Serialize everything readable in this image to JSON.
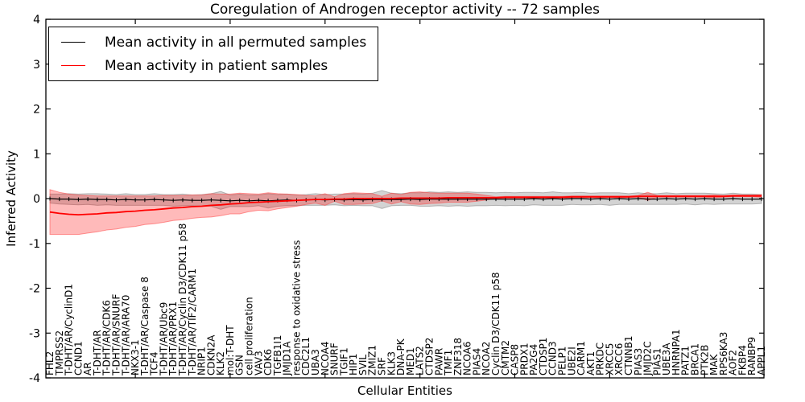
{
  "title": "Coregulation of Androgen receptor activity -- 72 samples",
  "axes": {
    "ylabel": "Inferred Activity",
    "xlabel": "Cellular Entities",
    "yticks": [
      4,
      3,
      2,
      1,
      0,
      -1,
      -2,
      -3,
      -4
    ],
    "ylim": [
      -4,
      4
    ]
  },
  "legend": {
    "entries": [
      {
        "label": "Mean activity in all permuted samples",
        "color": "#000000"
      },
      {
        "label": "Mean activity in patient samples",
        "color": "#ff0000"
      }
    ],
    "position": "upper left"
  },
  "chart_data": {
    "type": "line",
    "title": "Coregulation of Androgen receptor activity -- 72 samples",
    "xlabel": "Cellular Entities",
    "ylabel": "Inferred Activity",
    "ylim": [
      -4,
      4
    ],
    "grid": false,
    "legend_position": "upper left",
    "xtick_indices": [
      9,
      19,
      29,
      39,
      49,
      59,
      69
    ],
    "categories": [
      "FHL2",
      "TMPRSS2",
      "T-DHT/AR/CyclinD1",
      "CCND1",
      "AR",
      "T-DHT/AR",
      "T-DHT/AR/CDK6",
      "T-DHT/AR/SNURF",
      "T-DHT/AR/ARA70",
      "NKX3-1",
      "T-DHT/AR/Caspase 8",
      "TCF4",
      "T-DHT/AR/Ubc9",
      "T-DHT/AR/PRX1",
      "T-DHT/AR/Cyclin D3/CDK11 p58",
      "T-DHT/AR/TIF2/CARM1",
      "NRIP1",
      "CDKN2A",
      "KLK2",
      "mol:T-DHT",
      "GSN",
      "cell proliferation",
      "VAV3",
      "CDK6",
      "TGFB1I1",
      "JMJD1A",
      "response to oxidative stress",
      "CDC2L1",
      "UBA3",
      "NCOA4",
      "SNURF",
      "TGIF1",
      "HIP1",
      "SVIL",
      "ZMIZ1",
      "SRF",
      "KLK3",
      "DNA-PK",
      "MED1",
      "LATS2",
      "CTDSP2",
      "PAWR",
      "TMF1",
      "ZNF318",
      "NCOA6",
      "PIAS4",
      "NCOA2",
      "Cyclin D3/CDK11 p58",
      "CMTM2",
      "CASP8",
      "PRDX1",
      "PA2G4",
      "CTDSP1",
      "CCND3",
      "PELP1",
      "UBE2I",
      "CARM1",
      "AKT1",
      "PRKDC",
      "XRCC5",
      "XRCC6",
      "CTNNB1",
      "PIAS3",
      "JMJD2C",
      "PIAS1",
      "UBE3A",
      "HNRNPA1",
      "PATZ1",
      "BRCA1",
      "PTK2B",
      "MAK",
      "RPS6KA3",
      "AOF2",
      "FKBP4",
      "RANBP9",
      "APPL1"
    ],
    "series": [
      {
        "name": "Mean activity in all permuted samples",
        "color": "#000000",
        "line_width": 1.2,
        "marker": "tick",
        "band_color": "rgba(128,128,128,0.35)",
        "band_edge": "rgba(110,110,110,0.45)",
        "values": [
          0.0,
          -0.01,
          -0.01,
          -0.02,
          -0.01,
          -0.02,
          -0.02,
          -0.03,
          -0.02,
          -0.03,
          -0.03,
          -0.02,
          -0.03,
          -0.04,
          -0.03,
          -0.04,
          -0.04,
          -0.03,
          -0.04,
          -0.05,
          -0.04,
          -0.05,
          -0.04,
          -0.05,
          -0.04,
          -0.03,
          -0.04,
          -0.03,
          -0.02,
          -0.03,
          -0.02,
          -0.03,
          -0.02,
          -0.03,
          -0.02,
          -0.02,
          -0.02,
          -0.02,
          -0.01,
          -0.02,
          -0.01,
          -0.01,
          -0.01,
          -0.01,
          -0.01,
          -0.01,
          -0.01,
          -0.01,
          -0.01,
          -0.01,
          -0.01,
          0.0,
          -0.01,
          0.0,
          -0.01,
          0.0,
          0.0,
          -0.01,
          0.0,
          -0.01,
          0.0,
          -0.01,
          0.0,
          -0.01,
          -0.01,
          0.0,
          -0.01,
          0.0,
          -0.01,
          0.0,
          -0.01,
          -0.01,
          0.0,
          -0.01,
          -0.01,
          -0.01
        ],
        "band_halfwidth": [
          0.1,
          0.11,
          0.12,
          0.12,
          0.12,
          0.13,
          0.12,
          0.12,
          0.13,
          0.12,
          0.12,
          0.13,
          0.12,
          0.13,
          0.13,
          0.12,
          0.13,
          0.14,
          0.2,
          0.13,
          0.14,
          0.13,
          0.12,
          0.16,
          0.13,
          0.13,
          0.12,
          0.12,
          0.13,
          0.12,
          0.12,
          0.13,
          0.13,
          0.13,
          0.14,
          0.2,
          0.14,
          0.13,
          0.14,
          0.15,
          0.16,
          0.15,
          0.16,
          0.15,
          0.16,
          0.15,
          0.15,
          0.14,
          0.15,
          0.14,
          0.15,
          0.14,
          0.14,
          0.15,
          0.14,
          0.13,
          0.14,
          0.13,
          0.13,
          0.14,
          0.13,
          0.12,
          0.13,
          0.12,
          0.12,
          0.13,
          0.12,
          0.12,
          0.13,
          0.12,
          0.12,
          0.11,
          0.12,
          0.11,
          0.11,
          0.1
        ]
      },
      {
        "name": "Mean activity in patient samples",
        "color": "#ff0000",
        "line_width": 1.8,
        "marker": "none",
        "band_color": "rgba(255,0,0,0.27)",
        "band_edge": "rgba(255,70,70,0.55)",
        "values": [
          -0.3,
          -0.33,
          -0.35,
          -0.36,
          -0.35,
          -0.34,
          -0.32,
          -0.31,
          -0.29,
          -0.28,
          -0.26,
          -0.25,
          -0.23,
          -0.21,
          -0.2,
          -0.18,
          -0.17,
          -0.15,
          -0.14,
          -0.12,
          -0.11,
          -0.09,
          -0.08,
          -0.07,
          -0.06,
          -0.05,
          -0.04,
          -0.03,
          -0.02,
          -0.02,
          -0.01,
          -0.01,
          0.0,
          0.0,
          0.0,
          0.0,
          0.0,
          0.01,
          0.01,
          0.01,
          0.01,
          0.01,
          0.02,
          0.02,
          0.02,
          0.02,
          0.02,
          0.02,
          0.03,
          0.03,
          0.03,
          0.03,
          0.03,
          0.03,
          0.03,
          0.04,
          0.04,
          0.04,
          0.04,
          0.04,
          0.04,
          0.04,
          0.05,
          0.05,
          0.05,
          0.05,
          0.05,
          0.05,
          0.05,
          0.05,
          0.05,
          0.05,
          0.06,
          0.06,
          0.06,
          0.06
        ],
        "band_halfwidth": [
          0.5,
          0.47,
          0.45,
          0.44,
          0.42,
          0.4,
          0.38,
          0.37,
          0.35,
          0.34,
          0.32,
          0.31,
          0.3,
          0.28,
          0.27,
          0.26,
          0.25,
          0.26,
          0.24,
          0.22,
          0.23,
          0.2,
          0.18,
          0.2,
          0.17,
          0.15,
          0.13,
          0.1,
          0.08,
          0.13,
          0.05,
          0.12,
          0.13,
          0.12,
          0.11,
          0.05,
          0.12,
          0.08,
          0.13,
          0.14,
          0.12,
          0.11,
          0.1,
          0.1,
          0.1,
          0.08,
          0.05,
          0.02,
          0.02,
          0.02,
          0.02,
          0.02,
          0.02,
          0.02,
          0.02,
          0.02,
          0.02,
          0.02,
          0.02,
          0.02,
          0.02,
          0.02,
          0.02,
          0.09,
          0.02,
          0.02,
          0.02,
          0.02,
          0.02,
          0.02,
          0.03,
          0.02,
          0.02,
          0.02,
          0.02,
          0.03
        ]
      }
    ]
  }
}
